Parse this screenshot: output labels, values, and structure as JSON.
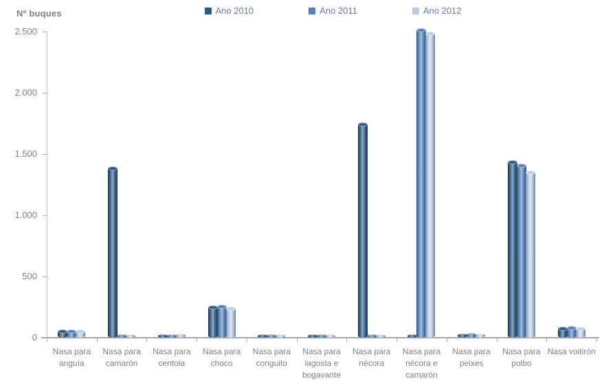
{
  "title": "Nº buques",
  "legend": {
    "items": [
      "Ano 2010",
      "Ano 2011",
      "Ano 2012"
    ]
  },
  "colors": {
    "ano_2010": "#2D5986",
    "ano_2011": "#4F81BD",
    "ano_2012": "#B9CDE5",
    "axis_line": "#A6A6A6",
    "axis_text": "#808080",
    "legend_text": "#6C7B95",
    "title_text": "#7F7F7F"
  },
  "chart_data": {
    "type": "bar",
    "subtype": "3d-cylinder-clustered",
    "title": "Nº buques",
    "xlabel": "",
    "ylabel": "Nº buques",
    "ylim": [
      0,
      2500
    ],
    "ytick_values": [
      2500,
      2000,
      1500,
      1000,
      500,
      0
    ],
    "ytick_labels": [
      "2.500",
      "2.000",
      "1.500",
      "1.000",
      "500",
      "0"
    ],
    "grid": false,
    "legend_position": "top",
    "categories": [
      "Nasa para anguía",
      "Nasa para camarón",
      "Nasa para centola",
      "Nasa para choco",
      "Nasa para conguito",
      "Nasa para lagosta e bogavante",
      "Nasa para nécora",
      "Nasa para nécora e camarón",
      "Nasa para peixes",
      "Nasa para polbo",
      "Nasa voitirón"
    ],
    "series": [
      {
        "name": "Ano 2010",
        "color": "#2D5986",
        "values": [
          50,
          1380,
          22,
          245,
          12,
          15,
          1740,
          15,
          30,
          1435,
          75
        ]
      },
      {
        "name": "Ano 2011",
        "color": "#4F81BD",
        "values": [
          52,
          18,
          24,
          250,
          12,
          15,
          12,
          2510,
          32,
          1405,
          78
        ]
      },
      {
        "name": "Ano 2012",
        "color": "#B9CDE5",
        "values": [
          50,
          10,
          26,
          238,
          12,
          15,
          10,
          2485,
          28,
          1350,
          75
        ]
      }
    ]
  }
}
